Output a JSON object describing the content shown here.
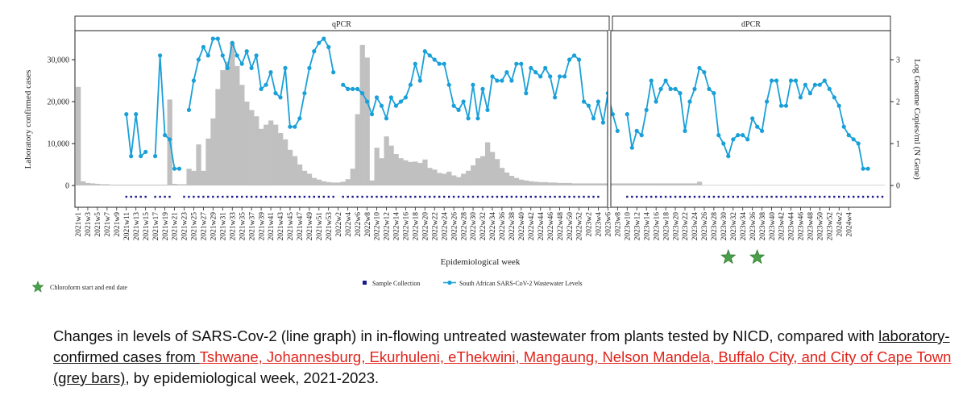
{
  "chart_data": {
    "type": "bar+line",
    "panels": [
      "qPCR",
      "dPCR"
    ],
    "y_left": {
      "label": "Laboratory confirmed cases",
      "ticks": [
        "0",
        "10,000",
        "20,000",
        "30,000"
      ],
      "range": [
        0,
        35000
      ]
    },
    "y_right": {
      "label": "Log Genome Copies/ml (N Gene)",
      "ticks": [
        "0",
        "1",
        "2",
        "3"
      ],
      "range": [
        0,
        3.5
      ]
    },
    "xlabel": "Epidemiological week",
    "x_tick_labels": [
      "2021w1",
      "2021w3",
      "2021w5",
      "2021w7",
      "2021w9",
      "2021w11",
      "2021w13",
      "2021w15",
      "2021w17",
      "2021w19",
      "2021w21",
      "2021w23",
      "2021w25",
      "2021w27",
      "2021w29",
      "2021w31",
      "2021w33",
      "2021w35",
      "2021w37",
      "2021w39",
      "2021w41",
      "2021w43",
      "2021w45",
      "2021w47",
      "2021w49",
      "2021w51",
      "2021w53",
      "2022w2",
      "2022w4",
      "2022w6",
      "2022w8",
      "2022w10",
      "2022w12",
      "2022w14",
      "2022w16",
      "2022w18",
      "2022w20",
      "2022w22",
      "2022w24",
      "2022w26",
      "2022w28",
      "2022w30",
      "2022w32",
      "2022w34",
      "2022w36",
      "2022w38",
      "2022w40",
      "2022w42",
      "2022w44",
      "2022w46",
      "2022w48",
      "2022w50",
      "2022w52",
      "2023w2",
      "2023w4",
      "2023w6",
      "2023w8",
      "2023w10",
      "2023w12",
      "2023w14",
      "2023w16",
      "2023w18",
      "2023w20",
      "2023w22",
      "2023w24",
      "2023w26",
      "2023w28",
      "2023w30",
      "2023w32",
      "2023w34",
      "2023w36",
      "2023w38",
      "2023w40",
      "2023w42",
      "2023w44",
      "2023w46",
      "2023w48",
      "2023w50",
      "2023w52",
      "2024w2",
      "2024w4"
    ],
    "bars": {
      "name": "Laboratory confirmed cases",
      "color": "#c0c0c0",
      "values": [
        23500,
        1000,
        600,
        500,
        400,
        300,
        300,
        200,
        200,
        200,
        200,
        200,
        200,
        200,
        200,
        200,
        200,
        200,
        200,
        20500,
        400,
        300,
        300,
        4000,
        3500,
        9800,
        3500,
        11200,
        16000,
        23000,
        27500,
        29500,
        34000,
        28500,
        24000,
        20000,
        18000,
        16500,
        13500,
        14500,
        15500,
        14500,
        12500,
        11000,
        8500,
        7000,
        5000,
        3500,
        2800,
        1800,
        1400,
        1000,
        800,
        700,
        700,
        900,
        1500,
        4000,
        17000,
        33500,
        30500,
        1200,
        9000,
        6500,
        11700,
        9500,
        7500,
        6500,
        6000,
        5600,
        5700,
        5400,
        6200,
        4200,
        3800,
        3000,
        2800,
        3300,
        2400,
        2000,
        2800,
        3500,
        4800,
        6500,
        7000,
        10300,
        8000,
        6300,
        4200,
        3100,
        2300,
        1800,
        1400,
        1200,
        1000,
        900,
        800,
        800,
        700,
        700,
        600,
        600,
        600,
        500,
        500,
        500,
        500,
        500,
        500,
        500,
        500,
        500,
        500,
        500,
        500,
        500,
        500,
        500,
        500,
        500,
        500,
        500,
        500,
        500,
        500,
        500,
        500,
        500,
        500,
        900
      ]
    },
    "line": {
      "name": "South African SARS-CoV-2 Wastewater Levels",
      "color": "#1aa0d8",
      "segments": [
        {
          "start": 10,
          "values": [
            1.7,
            0.7,
            1.7,
            0.7,
            0.8
          ]
        },
        {
          "start": 16,
          "values": [
            0.7,
            3.1,
            1.2,
            1.1,
            0.4,
            0.4
          ]
        },
        {
          "start": 23,
          "values": [
            1.8,
            2.5,
            3.0,
            3.3,
            3.1,
            3.5,
            3.5,
            3.1,
            2.8,
            3.4,
            3.1,
            2.9,
            3.2,
            2.8,
            3.1,
            2.3,
            2.4,
            2.7,
            2.2,
            2.1,
            2.8,
            1.4,
            1.4,
            1.6,
            2.2,
            2.8,
            3.2,
            3.4,
            3.5,
            3.3,
            2.7
          ]
        },
        {
          "start": 55,
          "values": [
            2.4,
            2.3,
            2.3,
            2.3,
            2.2,
            2.0,
            1.7,
            2.1,
            1.9,
            1.6,
            2.1,
            1.9,
            2.0,
            2.1,
            2.4,
            2.9,
            2.5,
            3.2,
            3.1,
            3.0,
            2.9,
            2.9,
            2.4,
            1.9,
            1.8,
            2.0,
            1.6,
            2.4,
            1.6,
            2.3,
            1.8,
            2.6,
            2.5,
            2.5,
            2.7,
            2.5,
            2.9,
            2.9,
            2.2,
            2.8,
            2.7,
            2.6,
            2.8,
            2.6,
            2.1,
            2.6,
            2.6,
            3.0,
            3.1,
            3.0,
            2.0,
            1.9,
            1.6,
            2.0,
            1.5,
            2.2,
            1.7,
            1.3
          ]
        },
        {
          "start": 114,
          "values": [
            1.7,
            0.9,
            1.3,
            1.2,
            1.8,
            2.5,
            2.0,
            2.3,
            2.5,
            2.3,
            2.3,
            2.2,
            1.3,
            2.0,
            2.3,
            2.8,
            2.7,
            2.3,
            2.2,
            1.2,
            1.0,
            0.7,
            1.1,
            1.2,
            1.2,
            1.1,
            1.6,
            1.4,
            1.3,
            2.0,
            2.5,
            2.5,
            1.9,
            1.9,
            2.5,
            2.5,
            2.1,
            2.4,
            2.2,
            2.4,
            2.4,
            2.5,
            2.3,
            2.1,
            1.9,
            1.4,
            1.2,
            1.1,
            1.0,
            0.4,
            0.4
          ]
        }
      ]
    },
    "sample_collection": {
      "name": "Sample Collection",
      "color": "#1a1a8c",
      "runs": [
        [
          10,
          14
        ],
        [
          16,
          19
        ],
        [
          22,
          53
        ],
        [
          55,
          108
        ],
        [
          114,
          167
        ]
      ]
    },
    "chloroform_stars": {
      "name": "Chloroform start and end date",
      "color": "#4aa04a",
      "weeks": [
        135,
        141
      ]
    }
  },
  "legend": {
    "chloroform": "Chloroform start and end date",
    "sample_collection": "Sample Collection",
    "wastewater": "South African SARS-CoV-2 Wastewater Levels"
  },
  "caption": {
    "p1": "Changes in levels of SARS-Cov-2 (line graph) in in-flowing untreated wastewater from plants tested by NICD, compared with ",
    "p2": "laboratory-confirmed cases from ",
    "p3": "Tshwane, Johannesburg, Ekurhuleni, eThekwini, Mangaung, Nelson Mandela, Buffalo City, and City of Cape Town ",
    "p4": "(grey bars)",
    "p5": ", by epidemiological week, 2021-2023."
  }
}
